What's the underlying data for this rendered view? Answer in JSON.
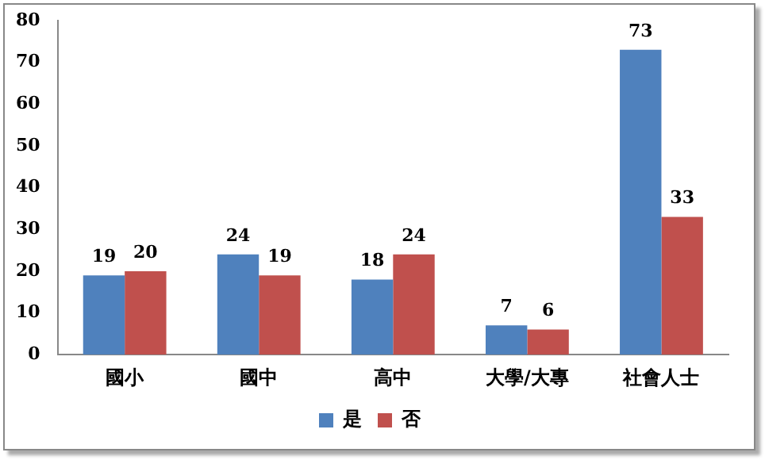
{
  "chart_data": {
    "type": "bar",
    "categories": [
      "國小",
      "國中",
      "高中",
      "大學/大專",
      "社會人士"
    ],
    "series": [
      {
        "name": "是",
        "color": "#4f81bd",
        "values": [
          19,
          24,
          18,
          7,
          73
        ]
      },
      {
        "name": "否",
        "color": "#c0504d",
        "values": [
          20,
          19,
          24,
          6,
          33
        ]
      }
    ],
    "ylim": [
      0,
      80
    ],
    "yticks": [
      0,
      10,
      20,
      30,
      40,
      50,
      60,
      70,
      80
    ],
    "grid": false,
    "legend": "bottom",
    "data_labels": true
  }
}
